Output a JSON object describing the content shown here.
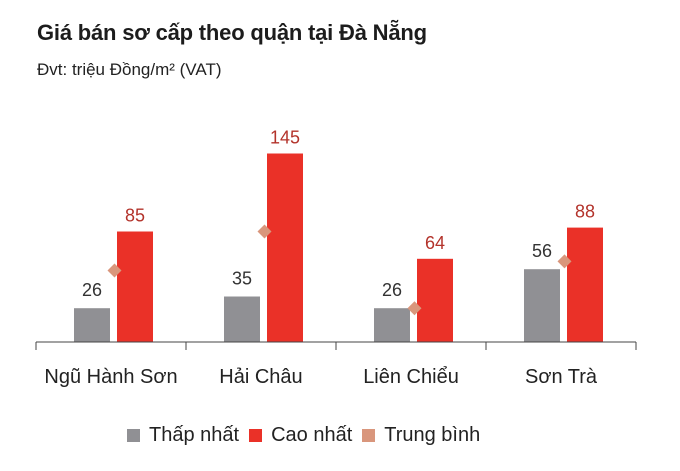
{
  "header": {
    "title": "Giá bán sơ cấp theo quận tại Đà Nẵng",
    "subtitle": "Đvt: triệu Đồng/m² (VAT)"
  },
  "colors": {
    "low": "#909094",
    "high": "#ea3128",
    "avg": "#d9967c",
    "high_label": "#b3332b",
    "axis": "#444444"
  },
  "chart_data": {
    "type": "bar",
    "categories": [
      "Ngũ Hành Sơn",
      "Hải Châu",
      "Liên Chiểu",
      "Sơn Trà"
    ],
    "series": [
      {
        "name": "Thấp nhất",
        "values": [
          26,
          35,
          26,
          56
        ]
      },
      {
        "name": "Cao nhất",
        "values": [
          85,
          145,
          64,
          88
        ]
      },
      {
        "name": "Trung bình",
        "values": [
          55,
          85,
          26,
          62
        ]
      }
    ],
    "title": "Giá bán sơ cấp theo quận tại Đà Nẵng",
    "subtitle": "Đvt: triệu Đồng/m² (VAT)",
    "ylim": [
      0,
      150
    ],
    "grid": false,
    "legend": "bottom"
  },
  "legend": {
    "items": [
      {
        "label": "Thấp nhất",
        "color": "#909094"
      },
      {
        "label": "Cao nhất",
        "color": "#ea3128"
      },
      {
        "label": "Trung bình",
        "color": "#d9967c"
      }
    ]
  }
}
